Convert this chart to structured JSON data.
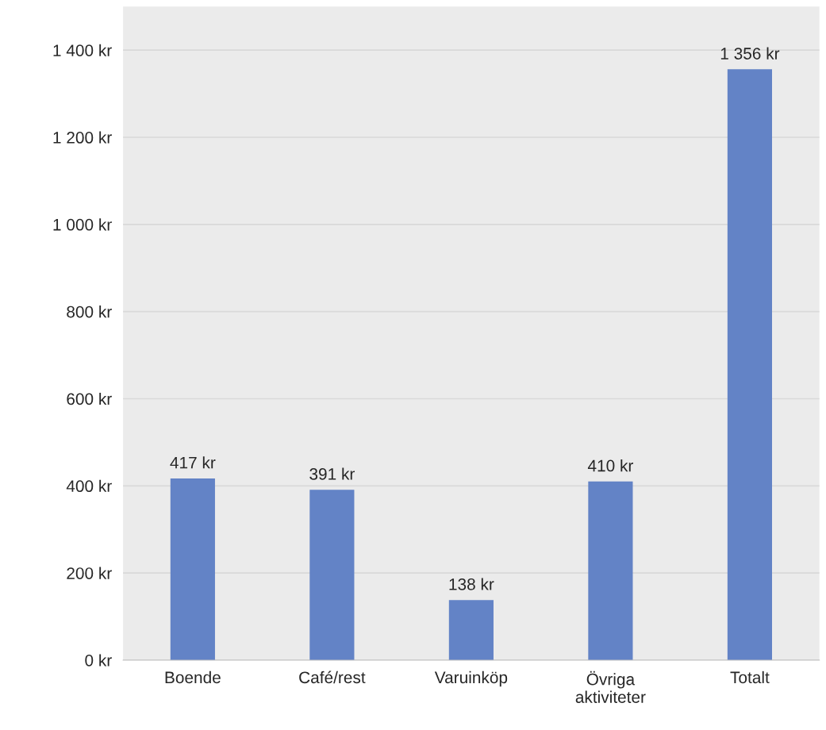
{
  "chart_data": {
    "type": "bar",
    "categories": [
      "Boende",
      "Café/rest",
      "Varuinköp",
      "Övriga\naktiviteter",
      "Totalt"
    ],
    "values": [
      417,
      391,
      138,
      410,
      1356
    ],
    "value_labels": [
      "417 kr",
      "391 kr",
      "138 kr",
      "410 kr",
      "1 356 kr"
    ],
    "color": "#6383c6",
    "ylim": [
      0,
      1500
    ],
    "yticks": [
      {
        "value": 0,
        "label": "0 kr"
      },
      {
        "value": 200,
        "label": "200 kr"
      },
      {
        "value": 400,
        "label": "400 kr"
      },
      {
        "value": 600,
        "label": "600 kr"
      },
      {
        "value": 800,
        "label": "800 kr"
      },
      {
        "value": 1000,
        "label": "1 000 kr"
      },
      {
        "value": 1200,
        "label": "1 200 kr"
      },
      {
        "value": 1400,
        "label": "1 400 kr"
      }
    ],
    "grid": "y"
  }
}
